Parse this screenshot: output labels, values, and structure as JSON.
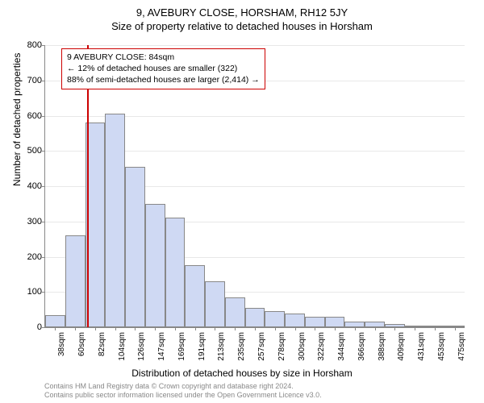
{
  "title": "9, AVEBURY CLOSE, HORSHAM, RH12 5JY",
  "subtitle": "Size of property relative to detached houses in Horsham",
  "ylabel": "Number of detached properties",
  "xlabel": "Distribution of detached houses by size in Horsham",
  "chart": {
    "type": "histogram",
    "ylim": [
      0,
      800
    ],
    "ytick_step": 100,
    "bar_fill": "#cfd9f3",
    "bar_border": "#888888",
    "grid_color": "#e8e8e8",
    "marker_color": "#cc0000",
    "marker_value_index": 2,
    "categories": [
      "38sqm",
      "60sqm",
      "82sqm",
      "104sqm",
      "126sqm",
      "147sqm",
      "169sqm",
      "191sqm",
      "213sqm",
      "235sqm",
      "257sqm",
      "278sqm",
      "300sqm",
      "322sqm",
      "344sqm",
      "366sqm",
      "388sqm",
      "409sqm",
      "431sqm",
      "453sqm",
      "475sqm"
    ],
    "values": [
      35,
      260,
      580,
      605,
      455,
      350,
      310,
      175,
      130,
      85,
      55,
      45,
      40,
      30,
      30,
      15,
      15,
      10,
      5,
      5,
      5
    ]
  },
  "info_box": {
    "line1": "9 AVEBURY CLOSE: 84sqm",
    "line2": "← 12% of detached houses are smaller (322)",
    "line3": "88% of semi-detached houses are larger (2,414) →"
  },
  "footer": {
    "line1": "Contains HM Land Registry data © Crown copyright and database right 2024.",
    "line2": "Contains public sector information licensed under the Open Government Licence v3.0."
  }
}
